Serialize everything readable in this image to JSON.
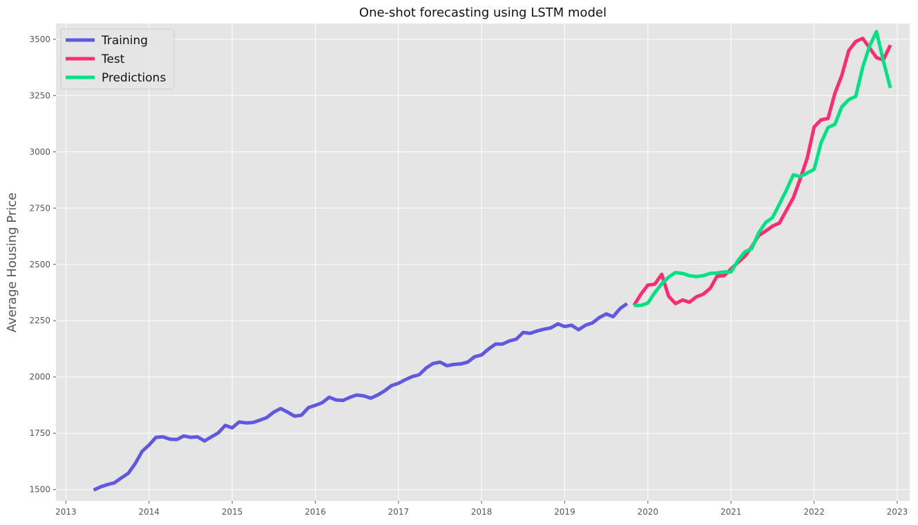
{
  "chart_data": {
    "type": "line",
    "title": "One-shot forecasting using LSTM model",
    "xlabel": "",
    "ylabel": "Average Housing Price",
    "xlim": [
      2012.88,
      2023.15
    ],
    "ylim": [
      1450,
      3570
    ],
    "x_ticks": [
      "2013",
      "2014",
      "2015",
      "2016",
      "2017",
      "2018",
      "2019",
      "2020",
      "2021",
      "2022",
      "2023"
    ],
    "y_ticks": [
      1500,
      1750,
      2000,
      2250,
      2500,
      2750,
      3000,
      3250,
      3500
    ],
    "grid": true,
    "legend_position": "top-left",
    "colors": {
      "background": "#e5e5e5",
      "grid": "#ffffff"
    },
    "series": [
      {
        "name": "Training",
        "color": "#6158e0",
        "x": [
          2013.333,
          2013.417,
          2013.5,
          2013.583,
          2013.667,
          2013.75,
          2013.833,
          2013.917,
          2014.0,
          2014.083,
          2014.167,
          2014.25,
          2014.333,
          2014.417,
          2014.5,
          2014.583,
          2014.667,
          2014.75,
          2014.833,
          2014.917,
          2015.0,
          2015.083,
          2015.167,
          2015.25,
          2015.333,
          2015.417,
          2015.5,
          2015.583,
          2015.667,
          2015.75,
          2015.833,
          2015.917,
          2016.0,
          2016.083,
          2016.167,
          2016.25,
          2016.333,
          2016.417,
          2016.5,
          2016.583,
          2016.667,
          2016.75,
          2016.833,
          2016.917,
          2017.0,
          2017.083,
          2017.167,
          2017.25,
          2017.333,
          2017.417,
          2017.5,
          2017.583,
          2017.667,
          2017.75,
          2017.833,
          2017.917,
          2018.0,
          2018.083,
          2018.167,
          2018.25,
          2018.333,
          2018.417,
          2018.5,
          2018.583,
          2018.667,
          2018.75,
          2018.833,
          2018.917,
          2019.0,
          2019.083,
          2019.167,
          2019.25,
          2019.333,
          2019.417,
          2019.5,
          2019.583,
          2019.667,
          2019.75
        ],
        "values": [
          1498,
          1512,
          1522,
          1530,
          1552,
          1572,
          1615,
          1670,
          1698,
          1732,
          1734,
          1724,
          1722,
          1738,
          1732,
          1734,
          1716,
          1734,
          1752,
          1785,
          1774,
          1800,
          1796,
          1798,
          1808,
          1820,
          1844,
          1860,
          1844,
          1826,
          1830,
          1864,
          1874,
          1886,
          1910,
          1898,
          1896,
          1910,
          1920,
          1916,
          1906,
          1920,
          1938,
          1962,
          1972,
          1988,
          2002,
          2010,
          2040,
          2060,
          2066,
          2050,
          2056,
          2058,
          2066,
          2090,
          2098,
          2124,
          2146,
          2146,
          2160,
          2168,
          2198,
          2194,
          2204,
          2212,
          2218,
          2236,
          2224,
          2230,
          2210,
          2230,
          2240,
          2264,
          2280,
          2268,
          2304,
          2326
        ]
      },
      {
        "name": "Test",
        "color": "#fa2d72",
        "x": [
          2019.833,
          2019.917,
          2020.0,
          2020.083,
          2020.167,
          2020.25,
          2020.333,
          2020.417,
          2020.5,
          2020.583,
          2020.667,
          2020.75,
          2020.833,
          2020.917,
          2021.0,
          2021.083,
          2021.167,
          2021.25,
          2021.333,
          2021.417,
          2021.5,
          2021.583,
          2021.667,
          2021.75,
          2021.833,
          2021.917,
          2022.0,
          2022.083,
          2022.167,
          2022.25,
          2022.333,
          2022.417,
          2022.5,
          2022.583,
          2022.667,
          2022.75,
          2022.833,
          2022.917
        ],
        "values": [
          2318,
          2368,
          2408,
          2412,
          2456,
          2358,
          2326,
          2342,
          2332,
          2356,
          2368,
          2394,
          2448,
          2450,
          2480,
          2508,
          2536,
          2578,
          2628,
          2648,
          2670,
          2684,
          2740,
          2796,
          2880,
          2972,
          3110,
          3142,
          3148,
          3260,
          3340,
          3450,
          3490,
          3504,
          3462,
          3418,
          3408,
          3474
        ]
      },
      {
        "name": "Predictions",
        "color": "#03e282",
        "x": [
          2019.833,
          2019.917,
          2020.0,
          2020.083,
          2020.167,
          2020.25,
          2020.333,
          2020.417,
          2020.5,
          2020.583,
          2020.667,
          2020.75,
          2020.833,
          2020.917,
          2021.0,
          2021.083,
          2021.167,
          2021.25,
          2021.333,
          2021.417,
          2021.5,
          2021.583,
          2021.667,
          2021.75,
          2021.833,
          2021.917,
          2022.0,
          2022.083,
          2022.167,
          2022.25,
          2022.333,
          2022.417,
          2022.5,
          2022.583,
          2022.667,
          2022.75,
          2022.833,
          2022.917
        ],
        "values": [
          2318,
          2318,
          2328,
          2374,
          2414,
          2444,
          2464,
          2460,
          2450,
          2446,
          2450,
          2460,
          2462,
          2466,
          2466,
          2516,
          2556,
          2570,
          2640,
          2686,
          2708,
          2768,
          2830,
          2898,
          2890,
          2906,
          2922,
          3040,
          3108,
          3122,
          3200,
          3232,
          3246,
          3374,
          3470,
          3534,
          3404,
          3284
        ]
      }
    ]
  }
}
